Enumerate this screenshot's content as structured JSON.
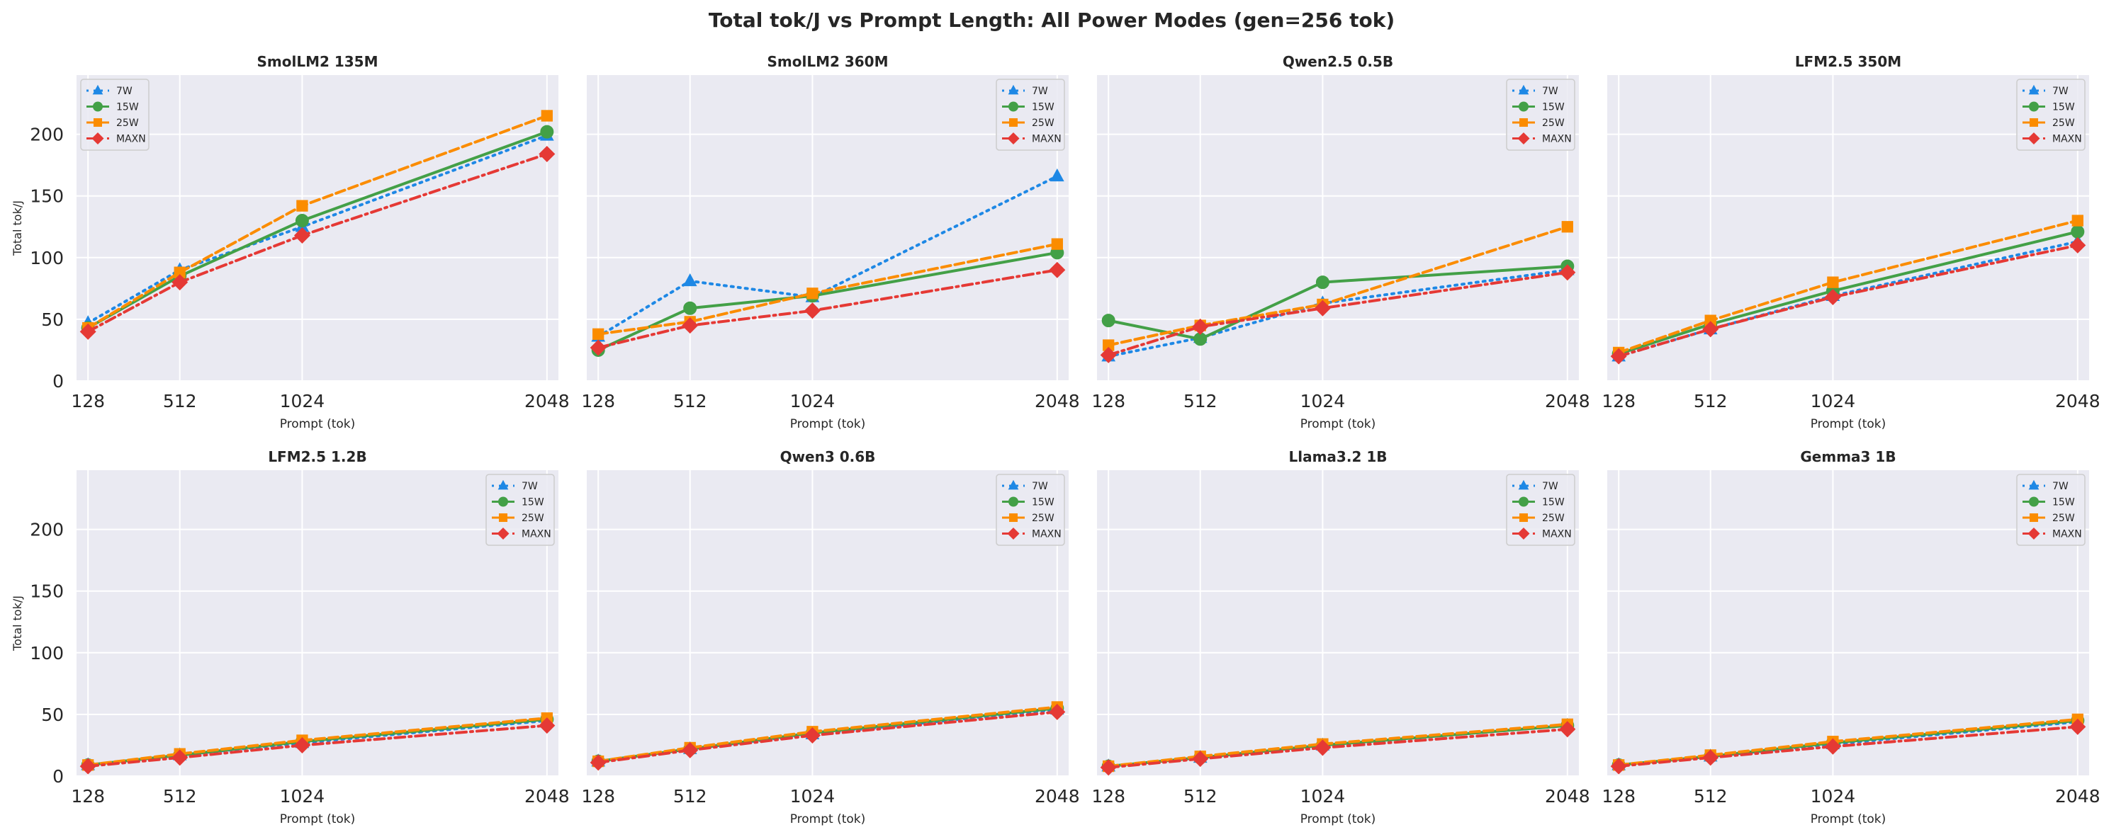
{
  "figure": {
    "title": "Total tok/J vs Prompt Length: All Power Modes (gen=256 tok)"
  },
  "modes": [
    {
      "name": "7W",
      "color": "#1e88e5",
      "marker": "triangle",
      "dash": "dotted"
    },
    {
      "name": "15W",
      "color": "#43a047",
      "marker": "circle",
      "dash": "solid"
    },
    {
      "name": "25W",
      "color": "#fb8c00",
      "marker": "square",
      "dash": "dashed"
    },
    {
      "name": "MAXN",
      "color": "#e53935",
      "marker": "diamond",
      "dash": "dashdot"
    }
  ],
  "chart_data": [
    {
      "type": "line",
      "title": "SmolLM2 135M",
      "xlabel": "Prompt (tok)",
      "ylabel": "Total tok/J",
      "x": [
        128,
        512,
        1024,
        2048
      ],
      "xticks": [
        128,
        512,
        1024,
        2048
      ],
      "ylim": [
        0,
        248
      ],
      "yticks": [
        0,
        50,
        100,
        150,
        200
      ],
      "grid": true,
      "legend_position": "top-left",
      "series": [
        {
          "name": "7W",
          "values": [
            47,
            90,
            125,
            199
          ]
        },
        {
          "name": "15W",
          "values": [
            43,
            85,
            130,
            202
          ]
        },
        {
          "name": "25W",
          "values": [
            43,
            88,
            142,
            215
          ]
        },
        {
          "name": "MAXN",
          "values": [
            40,
            80,
            118,
            184
          ]
        }
      ]
    },
    {
      "type": "line",
      "title": "SmolLM2 360M",
      "xlabel": "Prompt (tok)",
      "ylabel": "",
      "x": [
        128,
        512,
        1024,
        2048
      ],
      "xticks": [
        128,
        512,
        1024,
        2048
      ],
      "ylim": [
        0,
        248
      ],
      "yticks": [
        0,
        50,
        100,
        150,
        200
      ],
      "grid": true,
      "legend_position": "top-right",
      "series": [
        {
          "name": "7W",
          "values": [
            36,
            81,
            68,
            166
          ]
        },
        {
          "name": "15W",
          "values": [
            25,
            59,
            69,
            104
          ]
        },
        {
          "name": "25W",
          "values": [
            38,
            48,
            71,
            111
          ]
        },
        {
          "name": "MAXN",
          "values": [
            27,
            45,
            57,
            90
          ]
        }
      ]
    },
    {
      "type": "line",
      "title": "Qwen2.5 0.5B",
      "xlabel": "Prompt (tok)",
      "ylabel": "",
      "x": [
        128,
        512,
        1024,
        2048
      ],
      "xticks": [
        128,
        512,
        1024,
        2048
      ],
      "ylim": [
        0,
        248
      ],
      "yticks": [
        0,
        50,
        100,
        150,
        200
      ],
      "grid": true,
      "legend_position": "top-right",
      "series": [
        {
          "name": "7W",
          "values": [
            20,
            35,
            63,
            90
          ]
        },
        {
          "name": "15W",
          "values": [
            49,
            34,
            80,
            93
          ]
        },
        {
          "name": "25W",
          "values": [
            29,
            45,
            62,
            125
          ]
        },
        {
          "name": "MAXN",
          "values": [
            21,
            44,
            59,
            88
          ]
        }
      ]
    },
    {
      "type": "line",
      "title": "LFM2.5 350M",
      "xlabel": "Prompt (tok)",
      "ylabel": "",
      "x": [
        128,
        512,
        1024,
        2048
      ],
      "xticks": [
        128,
        512,
        1024,
        2048
      ],
      "ylim": [
        0,
        248
      ],
      "yticks": [
        0,
        50,
        100,
        150,
        200
      ],
      "grid": true,
      "legend_position": "top-right",
      "series": [
        {
          "name": "7W",
          "values": [
            20,
            42,
            69,
            113
          ]
        },
        {
          "name": "15W",
          "values": [
            22,
            46,
            73,
            121
          ]
        },
        {
          "name": "25W",
          "values": [
            23,
            49,
            80,
            130
          ]
        },
        {
          "name": "MAXN",
          "values": [
            20,
            42,
            68,
            110
          ]
        }
      ]
    },
    {
      "type": "line",
      "title": "LFM2.5 1.2B",
      "xlabel": "Prompt (tok)",
      "ylabel": "Total tok/J",
      "x": [
        128,
        512,
        1024,
        2048
      ],
      "xticks": [
        128,
        512,
        1024,
        2048
      ],
      "ylim": [
        0,
        248
      ],
      "yticks": [
        0,
        50,
        100,
        150,
        200
      ],
      "grid": true,
      "legend_position": "top-right",
      "series": [
        {
          "name": "7W",
          "values": [
            9,
            17,
            27,
            45
          ]
        },
        {
          "name": "15W",
          "values": [
            9,
            17,
            28,
            46
          ]
        },
        {
          "name": "25W",
          "values": [
            9,
            18,
            29,
            47
          ]
        },
        {
          "name": "MAXN",
          "values": [
            8,
            15,
            25,
            41
          ]
        }
      ]
    },
    {
      "type": "line",
      "title": "Qwen3 0.6B",
      "xlabel": "Prompt (tok)",
      "ylabel": "",
      "x": [
        128,
        512,
        1024,
        2048
      ],
      "xticks": [
        128,
        512,
        1024,
        2048
      ],
      "ylim": [
        0,
        248
      ],
      "yticks": [
        0,
        50,
        100,
        150,
        200
      ],
      "grid": true,
      "legend_position": "top-right",
      "series": [
        {
          "name": "7W",
          "values": [
            12,
            22,
            34,
            54
          ]
        },
        {
          "name": "15W",
          "values": [
            12,
            22,
            35,
            55
          ]
        },
        {
          "name": "25W",
          "values": [
            12,
            23,
            36,
            56
          ]
        },
        {
          "name": "MAXN",
          "values": [
            11,
            21,
            33,
            52
          ]
        }
      ]
    },
    {
      "type": "line",
      "title": "Llama3.2 1B",
      "xlabel": "Prompt (tok)",
      "ylabel": "",
      "x": [
        128,
        512,
        1024,
        2048
      ],
      "xticks": [
        128,
        512,
        1024,
        2048
      ],
      "ylim": [
        0,
        248
      ],
      "yticks": [
        0,
        50,
        100,
        150,
        200
      ],
      "grid": true,
      "legend_position": "top-right",
      "series": [
        {
          "name": "7W",
          "values": [
            8,
            15,
            25,
            41
          ]
        },
        {
          "name": "15W",
          "values": [
            8,
            15,
            25,
            41
          ]
        },
        {
          "name": "25W",
          "values": [
            8,
            16,
            26,
            42
          ]
        },
        {
          "name": "MAXN",
          "values": [
            7,
            14,
            23,
            38
          ]
        }
      ]
    },
    {
      "type": "line",
      "title": "Gemma3 1B",
      "xlabel": "Prompt (tok)",
      "ylabel": "",
      "x": [
        128,
        512,
        1024,
        2048
      ],
      "xticks": [
        128,
        512,
        1024,
        2048
      ],
      "ylim": [
        0,
        248
      ],
      "yticks": [
        0,
        50,
        100,
        150,
        200
      ],
      "grid": true,
      "legend_position": "top-right",
      "series": [
        {
          "name": "7W",
          "values": [
            9,
            16,
            26,
            44
          ]
        },
        {
          "name": "15W",
          "values": [
            9,
            16,
            27,
            45
          ]
        },
        {
          "name": "25W",
          "values": [
            9,
            17,
            28,
            46
          ]
        },
        {
          "name": "MAXN",
          "values": [
            8,
            15,
            24,
            40
          ]
        }
      ]
    }
  ]
}
